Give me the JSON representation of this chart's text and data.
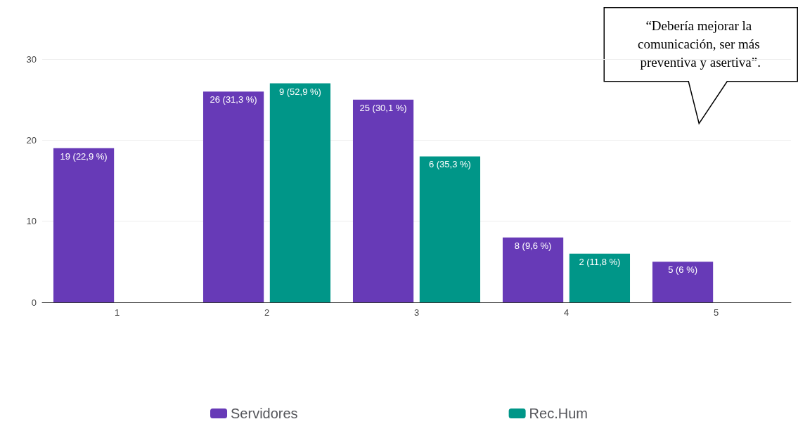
{
  "chart_data": {
    "type": "bar",
    "categories": [
      "1",
      "2",
      "3",
      "4",
      "5"
    ],
    "series": [
      {
        "name": "Servidores",
        "color": "#673ab7",
        "values": [
          19,
          26,
          25,
          8,
          5
        ],
        "value_labels": [
          "19 (22,9 %)",
          "26 (31,3 %)",
          "25 (30,1 %)",
          "8 (9,6 %)",
          "5 (6 %)"
        ]
      },
      {
        "name": "Rec.Hum",
        "color": "#009688",
        "axis": "y2",
        "values": [
          null,
          9,
          6,
          2,
          null
        ],
        "value_labels": [
          null,
          "9 (52,9 %)",
          "6 (35,3 %)",
          "2 (11,8 %)",
          null
        ]
      }
    ],
    "ylim": [
      0,
      30
    ],
    "yticks": [
      0,
      10,
      20,
      30
    ],
    "y2lim": [
      0,
      10
    ],
    "grid": "y",
    "legend": "bottom",
    "annotations": [
      "“Debería mejorar la comunicación, ser más preventiva y asertiva”."
    ]
  }
}
